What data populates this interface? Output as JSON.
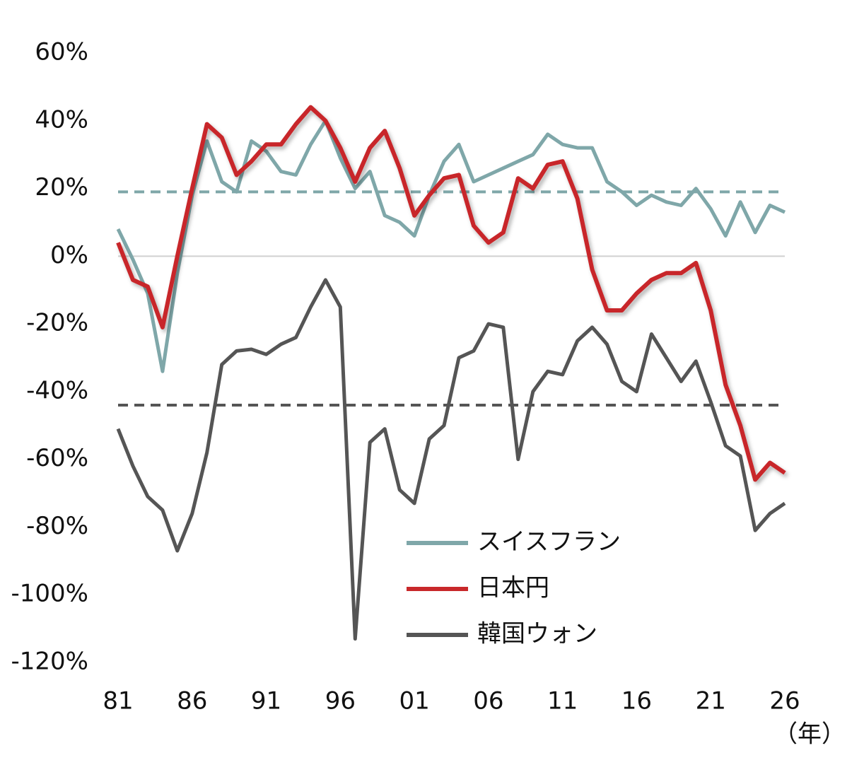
{
  "chart_data": {
    "type": "line",
    "categories": [
      "81",
      null,
      null,
      null,
      null,
      "86",
      null,
      null,
      null,
      null,
      "91",
      null,
      null,
      null,
      null,
      "96",
      null,
      null,
      null,
      null,
      "01",
      null,
      null,
      null,
      null,
      "06",
      null,
      null,
      null,
      null,
      "11",
      null,
      null,
      null,
      null,
      "16",
      null,
      null,
      null,
      null,
      "21",
      null,
      null,
      null,
      null,
      "26"
    ],
    "x_unit_label": "（年）",
    "series": [
      {
        "name": "スイスフラン",
        "color": "#7fa7a9",
        "values": [
          8,
          -1,
          -11,
          -34,
          -5,
          18,
          34,
          22,
          19,
          34,
          31,
          25,
          24,
          33,
          40,
          29,
          20,
          25,
          12,
          10,
          6,
          18,
          28,
          33,
          22,
          24,
          26,
          28,
          30,
          36,
          33,
          32,
          32,
          22,
          19,
          15,
          18,
          16,
          15,
          20,
          14,
          6,
          16,
          7,
          15,
          13
        ]
      },
      {
        "name": "日本円",
        "color": "#c8282a",
        "values": [
          4,
          -7,
          -9,
          -21,
          0,
          20,
          39,
          35,
          24,
          28,
          33,
          33,
          39,
          44,
          40,
          32,
          22,
          32,
          37,
          26,
          12,
          18,
          23,
          24,
          9,
          4,
          7,
          23,
          20,
          27,
          28,
          17,
          -4,
          -16,
          -16,
          -11,
          -7,
          -5,
          -5,
          -2,
          -16,
          -38,
          -50,
          -66,
          -61,
          -64
        ]
      },
      {
        "name": "韓国ウォン",
        "color": "#555555",
        "values": [
          -51,
          -62,
          -71,
          -75,
          -87,
          -76,
          -58,
          -32,
          -28,
          -27.5,
          -29,
          -26,
          -24,
          -15,
          -7,
          -15,
          -113,
          -55,
          -51,
          -69,
          -73,
          -54,
          -50,
          -30,
          -28,
          -20,
          -21,
          -60,
          -40,
          -34,
          -35,
          -25,
          -21,
          -26,
          -37,
          -40,
          -23,
          -30,
          -37,
          -31,
          -43,
          -56,
          -59,
          -81,
          -76,
          -73
        ]
      }
    ],
    "reference_lines": [
      {
        "value": 19,
        "color": "#7fa7a9"
      },
      {
        "value": -44,
        "color": "#555555"
      }
    ],
    "ylim": [
      -120,
      60
    ],
    "yticks": [
      {
        "value": 60,
        "label": "60%"
      },
      {
        "value": 40,
        "label": "40%"
      },
      {
        "value": 20,
        "label": "20%"
      },
      {
        "value": 0,
        "label": "0%"
      },
      {
        "value": -20,
        "label": "-20%"
      },
      {
        "value": -40,
        "label": "-40%"
      },
      {
        "value": -60,
        "label": "-60%"
      },
      {
        "value": -80,
        "label": "-80%"
      },
      {
        "value": -100,
        "label": "-100%"
      },
      {
        "value": -120,
        "label": "-120%"
      }
    ],
    "negative_tick_color": "#e0141e",
    "zero_line_color": "#d0d0d0"
  }
}
